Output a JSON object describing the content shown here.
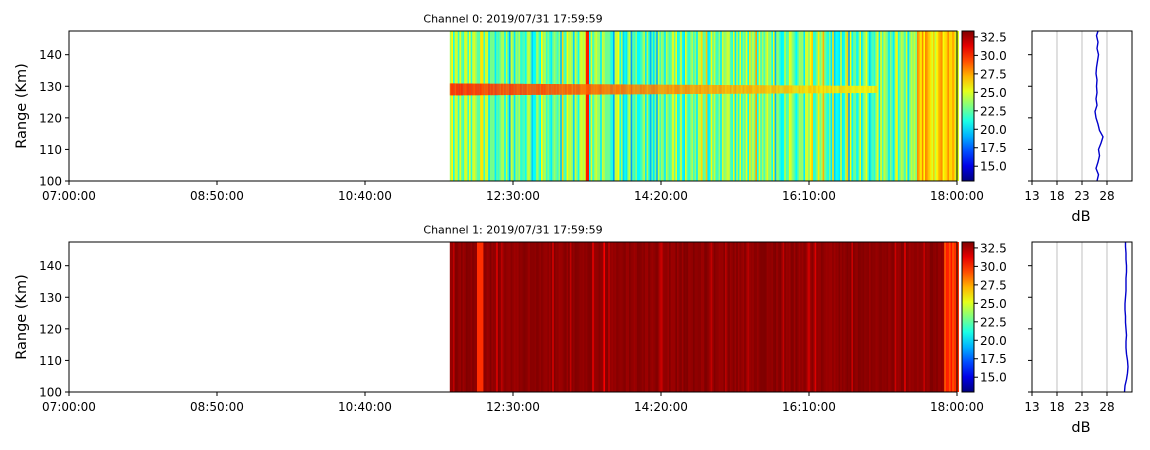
{
  "chart_data": [
    {
      "type": "heatmap",
      "title": "Channel 0: 2019/07/31 17:59:59",
      "xlabel": "",
      "ylabel": "Range (Km)",
      "x_ticks": [
        "07:00:00",
        "08:50:00",
        "10:40:00",
        "12:30:00",
        "14:20:00",
        "16:10:00",
        "18:00:00"
      ],
      "xlim": [
        "07:00:00",
        "18:00:00"
      ],
      "y_ticks": [
        100,
        110,
        120,
        130,
        140
      ],
      "ylim": [
        100,
        147.5
      ],
      "data_start": "11:43:00",
      "colorbar": {
        "colormap": "jet",
        "range": [
          13,
          33.3
        ],
        "ticks": [
          "15.0",
          "17.5",
          "20.0",
          "22.5",
          "25.0",
          "27.5",
          "30.0",
          "32.5"
        ]
      },
      "features": {
        "echo_band_range_km": 129,
        "echo_band_end": "17:00:00",
        "strong_vertical_stripe": "13:25:00",
        "high_noise_after": "17:30:00"
      },
      "profile": {
        "xlabel": "dB",
        "x_ticks": [
          13,
          18,
          23,
          28
        ],
        "xlim": [
          13,
          33
        ],
        "grid": true,
        "line_color": "#0000cc",
        "range_km": [
          100,
          102,
          104,
          106,
          108,
          110,
          112,
          114,
          116,
          118,
          120,
          122,
          124,
          126,
          128,
          130,
          132,
          134,
          136,
          138,
          140,
          142,
          144,
          146,
          147.5
        ],
        "values_db": [
          26,
          26.3,
          25.8,
          26.2,
          26.5,
          26.3,
          26.8,
          27.2,
          26.5,
          26.2,
          25.8,
          25.6,
          26,
          25.8,
          26,
          25.9,
          26,
          25.8,
          25.9,
          26.1,
          26.3,
          26,
          26.2,
          25.9,
          26.2
        ]
      }
    },
    {
      "type": "heatmap",
      "title": "Channel 1: 2019/07/31 17:59:59",
      "xlabel": "",
      "ylabel": "Range (Km)",
      "x_ticks": [
        "07:00:00",
        "08:50:00",
        "10:40:00",
        "12:30:00",
        "14:20:00",
        "16:10:00",
        "18:00:00"
      ],
      "xlim": [
        "07:00:00",
        "18:00:00"
      ],
      "y_ticks": [
        100,
        110,
        120,
        130,
        140
      ],
      "ylim": [
        100,
        147.5
      ],
      "data_start": "11:43:00",
      "colorbar": {
        "colormap": "jet",
        "range": [
          13,
          33.3
        ],
        "ticks": [
          "15.0",
          "17.5",
          "20.0",
          "22.5",
          "25.0",
          "27.5",
          "30.0",
          "32.5"
        ]
      },
      "features": {
        "saturated_background": true,
        "orange_band_start": "17:50:00"
      },
      "profile": {
        "xlabel": "dB",
        "x_ticks": [
          13,
          18,
          23,
          28
        ],
        "xlim": [
          13,
          33
        ],
        "grid": true,
        "line_color": "#0000cc",
        "range_km": [
          100,
          102,
          104,
          106,
          108,
          110,
          112,
          114,
          116,
          118,
          120,
          122,
          124,
          126,
          128,
          130,
          132,
          134,
          136,
          138,
          140,
          142,
          144,
          146,
          147.5
        ],
        "values_db": [
          31.5,
          31.6,
          31.9,
          32.1,
          32.2,
          32.1,
          31.9,
          31.8,
          31.8,
          31.9,
          31.8,
          31.7,
          31.7,
          31.6,
          31.6,
          31.7,
          31.8,
          31.8,
          31.8,
          31.9,
          31.9,
          31.8,
          31.8,
          31.7,
          31.7
        ]
      }
    }
  ]
}
